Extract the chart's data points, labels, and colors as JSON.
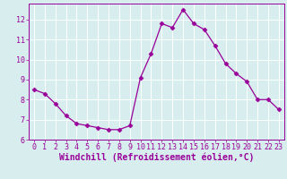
{
  "x": [
    0,
    1,
    2,
    3,
    4,
    5,
    6,
    7,
    8,
    9,
    10,
    11,
    12,
    13,
    14,
    15,
    16,
    17,
    18,
    19,
    20,
    21,
    22,
    23
  ],
  "y": [
    8.5,
    8.3,
    7.8,
    7.2,
    6.8,
    6.7,
    6.6,
    6.5,
    6.5,
    6.7,
    9.1,
    10.3,
    11.8,
    11.6,
    12.5,
    11.8,
    11.5,
    10.7,
    9.8,
    9.3,
    8.9,
    8.0,
    8.0,
    7.5
  ],
  "line_color": "#990099",
  "marker": "D",
  "marker_size": 2.5,
  "bg_color": "#d8eeee",
  "grid_color": "#ffffff",
  "xlabel": "Windchill (Refroidissement éolien,°C)",
  "xlabel_color": "#990099",
  "tick_color": "#990099",
  "ylim": [
    6,
    12.8
  ],
  "xlim": [
    -0.5,
    23.5
  ],
  "yticks": [
    6,
    7,
    8,
    9,
    10,
    11,
    12
  ],
  "xticks": [
    0,
    1,
    2,
    3,
    4,
    5,
    6,
    7,
    8,
    9,
    10,
    11,
    12,
    13,
    14,
    15,
    16,
    17,
    18,
    19,
    20,
    21,
    22,
    23
  ],
  "tick_fontsize": 6,
  "xlabel_fontsize": 7
}
